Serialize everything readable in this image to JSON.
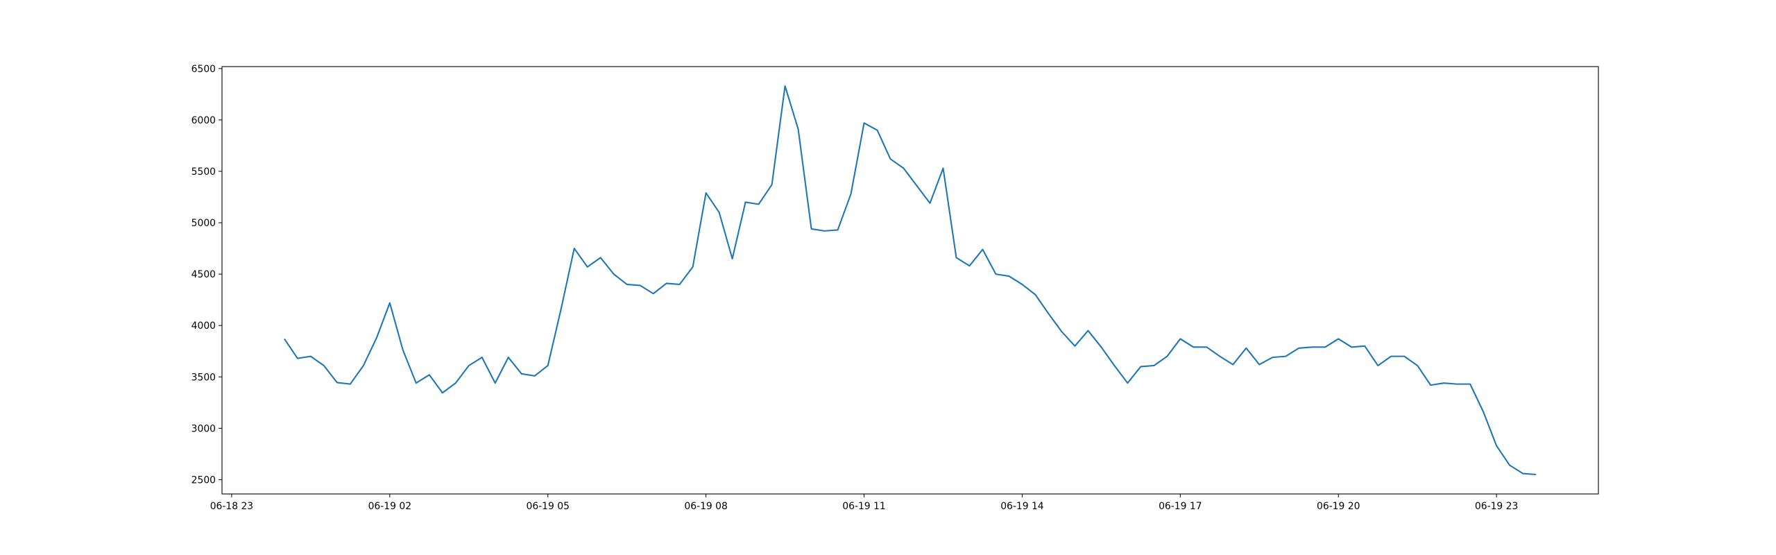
{
  "chart_data": {
    "type": "line",
    "x": [
      "06-19 00:00",
      "06-19 00:15",
      "06-19 00:30",
      "06-19 00:45",
      "06-19 01:00",
      "06-19 01:15",
      "06-19 01:30",
      "06-19 01:45",
      "06-19 02:00",
      "06-19 02:15",
      "06-19 02:30",
      "06-19 02:45",
      "06-19 03:00",
      "06-19 03:15",
      "06-19 03:30",
      "06-19 03:45",
      "06-19 04:00",
      "06-19 04:15",
      "06-19 04:30",
      "06-19 04:45",
      "06-19 05:00",
      "06-19 05:15",
      "06-19 05:30",
      "06-19 05:45",
      "06-19 06:00",
      "06-19 06:15",
      "06-19 06:30",
      "06-19 06:45",
      "06-19 07:00",
      "06-19 07:15",
      "06-19 07:30",
      "06-19 07:45",
      "06-19 08:00",
      "06-19 08:15",
      "06-19 08:30",
      "06-19 08:45",
      "06-19 09:00",
      "06-19 09:15",
      "06-19 09:30",
      "06-19 09:45",
      "06-19 10:00",
      "06-19 10:15",
      "06-19 10:30",
      "06-19 10:45",
      "06-19 11:00",
      "06-19 11:15",
      "06-19 11:30",
      "06-19 11:45",
      "06-19 12:00",
      "06-19 12:15",
      "06-19 12:30",
      "06-19 12:45",
      "06-19 13:00",
      "06-19 13:15",
      "06-19 13:30",
      "06-19 13:45",
      "06-19 14:00",
      "06-19 14:15",
      "06-19 14:30",
      "06-19 14:45",
      "06-19 15:00",
      "06-19 15:15",
      "06-19 15:30",
      "06-19 15:45",
      "06-19 16:00",
      "06-19 16:15",
      "06-19 16:30",
      "06-19 16:45",
      "06-19 17:00",
      "06-19 17:15",
      "06-19 17:30",
      "06-19 17:45",
      "06-19 18:00",
      "06-19 18:15",
      "06-19 18:30",
      "06-19 18:45",
      "06-19 19:00",
      "06-19 19:15",
      "06-19 19:30",
      "06-19 19:45",
      "06-19 20:00",
      "06-19 20:15",
      "06-19 20:30",
      "06-19 20:45",
      "06-19 21:00",
      "06-19 21:15",
      "06-19 21:30",
      "06-19 21:45",
      "06-19 22:00",
      "06-19 22:15",
      "06-19 22:30",
      "06-19 22:45",
      "06-19 23:00",
      "06-19 23:15",
      "06-19 23:30",
      "06-19 23:45"
    ],
    "series": [
      {
        "color": "#1f77b4",
        "values": [
          3870,
          3680,
          3700,
          3610,
          3445,
          3430,
          3610,
          3880,
          4220,
          3760,
          3440,
          3520,
          3345,
          3440,
          3610,
          3690,
          3440,
          3690,
          3530,
          3510,
          3610,
          4160,
          4750,
          4570,
          4660,
          4500,
          4400,
          4390,
          4310,
          4410,
          4400,
          4570,
          5290,
          5100,
          4650,
          5200,
          5180,
          5370,
          6330,
          5910,
          4940,
          4920,
          4930,
          5280,
          5970,
          5900,
          5620,
          5530,
          5360,
          5190,
          5530,
          4660,
          4580,
          4740,
          4500,
          4480,
          4400,
          4300,
          4115,
          3940,
          3800,
          3950,
          3790,
          3610,
          3440,
          3600,
          3610,
          3700,
          3870,
          3790,
          3790,
          3700,
          3620,
          3780,
          3620,
          3690,
          3700,
          3780,
          3790,
          3790,
          3870,
          3790,
          3800,
          3610,
          3700,
          3700,
          3610,
          3420,
          3440,
          3430,
          3430,
          3160,
          2830,
          2640,
          2560,
          2550
        ]
      }
    ],
    "xlim": [
      "06-18 22:49",
      "06-20 00:56"
    ],
    "xticks": [
      "06-18 23",
      "06-19 02",
      "06-19 05",
      "06-19 08",
      "06-19 11",
      "06-19 14",
      "06-19 17",
      "06-19 20",
      "06-19 23"
    ],
    "ylim": [
      2361,
      6519
    ],
    "yticks": [
      2500,
      3000,
      3500,
      4000,
      4500,
      5000,
      5500,
      6000,
      6500
    ]
  }
}
